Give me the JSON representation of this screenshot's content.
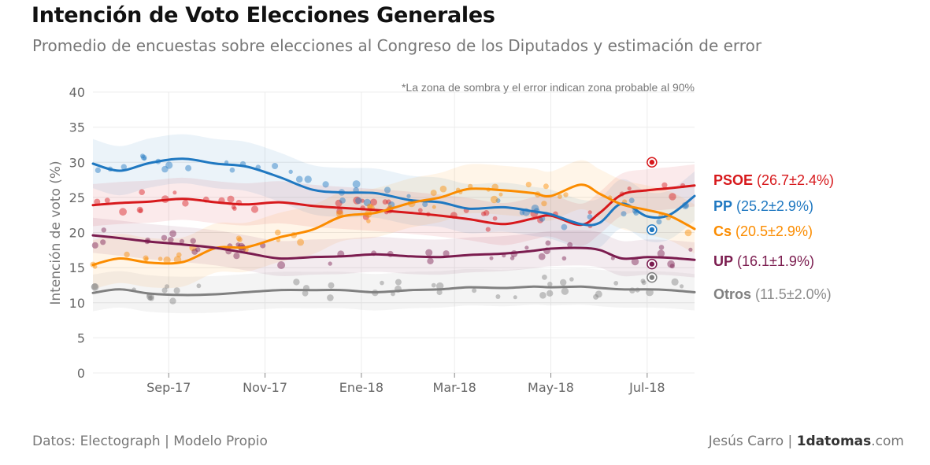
{
  "header": {
    "title": "Intención de Voto Elecciones Generales",
    "subtitle": "Promedio de encuestas sobre elecciones al Congreso de los Diputados y estimación de error"
  },
  "footer": {
    "source": "Datos: Electograph | Modelo Propio",
    "author": "Jesús Carro | ",
    "brand": "1datomas",
    "brand_suffix": ".com"
  },
  "chart_data": {
    "type": "line",
    "note": "*La zona de sombra y el error indican zona probable al 90%",
    "ylabel": "Intención de voto (%)",
    "ylim": [
      0,
      40
    ],
    "yticks": [
      0,
      5,
      10,
      15,
      20,
      25,
      30,
      35,
      40
    ],
    "xlim": [
      "2017-07-15",
      "2018-07-31"
    ],
    "xticks": [
      {
        "date": "2017-09-01",
        "label": "Sep-17"
      },
      {
        "date": "2017-11-01",
        "label": "Nov-17"
      },
      {
        "date": "2018-01-01",
        "label": "Ene-18"
      },
      {
        "date": "2018-03-01",
        "label": "Mar-18"
      },
      {
        "date": "2018-05-01",
        "label": "May-18"
      },
      {
        "date": "2018-07-01",
        "label": "Jul-18"
      }
    ],
    "grid": true,
    "legend_position": "right",
    "series": [
      {
        "name": "PSOE",
        "estimate": "26.7",
        "error": "2.4",
        "color": "#d7191c",
        "x": [
          "2017-07-15",
          "2017-08-01",
          "2017-08-20",
          "2017-09-10",
          "2017-10-01",
          "2017-10-20",
          "2017-11-10",
          "2017-12-01",
          "2017-12-20",
          "2018-01-10",
          "2018-02-01",
          "2018-02-20",
          "2018-03-10",
          "2018-04-01",
          "2018-04-20",
          "2018-05-01",
          "2018-05-20",
          "2018-06-01",
          "2018-06-15",
          "2018-07-01",
          "2018-07-15",
          "2018-07-31"
        ],
        "y": [
          23.9,
          24.2,
          24.4,
          24.8,
          24.3,
          24.0,
          24.3,
          23.8,
          23.5,
          23.2,
          22.8,
          22.4,
          21.9,
          21.2,
          22.0,
          22.4,
          21.1,
          22.8,
          25.4,
          26.0,
          26.3,
          26.7
        ]
      },
      {
        "name": "PP",
        "estimate": "25.2",
        "error": "2.9",
        "color": "#1f78c1",
        "x": [
          "2017-07-15",
          "2017-08-01",
          "2017-08-20",
          "2017-09-10",
          "2017-10-01",
          "2017-10-20",
          "2017-11-10",
          "2017-12-01",
          "2017-12-20",
          "2018-01-10",
          "2018-02-01",
          "2018-02-20",
          "2018-03-10",
          "2018-04-01",
          "2018-04-20",
          "2018-05-01",
          "2018-05-20",
          "2018-06-01",
          "2018-06-15",
          "2018-07-01",
          "2018-07-15",
          "2018-07-31"
        ],
        "y": [
          29.8,
          28.8,
          29.9,
          30.5,
          29.8,
          29.4,
          27.9,
          26.1,
          25.7,
          25.6,
          24.6,
          24.3,
          23.4,
          23.6,
          23.0,
          22.6,
          21.2,
          21.4,
          24.1,
          22.3,
          22.5,
          25.2
        ]
      },
      {
        "name": "Cs",
        "estimate": "20.5",
        "error": "2.9",
        "color": "#fb8c00",
        "x": [
          "2017-07-15",
          "2017-08-01",
          "2017-08-20",
          "2017-09-10",
          "2017-10-01",
          "2017-10-20",
          "2017-11-10",
          "2017-12-01",
          "2017-12-20",
          "2018-01-10",
          "2018-02-01",
          "2018-02-20",
          "2018-03-10",
          "2018-04-01",
          "2018-04-20",
          "2018-05-01",
          "2018-05-20",
          "2018-06-01",
          "2018-06-15",
          "2018-07-01",
          "2018-07-15",
          "2018-07-31"
        ],
        "y": [
          15.4,
          16.3,
          15.7,
          15.8,
          17.8,
          17.9,
          19.3,
          20.4,
          22.3,
          22.8,
          24.2,
          25.0,
          26.2,
          26.0,
          25.6,
          25.2,
          26.8,
          25.5,
          24.0,
          23.2,
          22.4,
          20.5
        ]
      },
      {
        "name": "UP",
        "estimate": "16.1",
        "error": "1.9",
        "color": "#7b1c4f",
        "x": [
          "2017-07-15",
          "2017-08-01",
          "2017-08-20",
          "2017-09-10",
          "2017-10-01",
          "2017-10-20",
          "2017-11-10",
          "2017-12-01",
          "2017-12-20",
          "2018-01-10",
          "2018-02-01",
          "2018-02-20",
          "2018-03-10",
          "2018-04-01",
          "2018-04-20",
          "2018-05-01",
          "2018-05-20",
          "2018-06-01",
          "2018-06-15",
          "2018-07-01",
          "2018-07-15",
          "2018-07-31"
        ],
        "y": [
          19.6,
          19.2,
          18.7,
          18.3,
          17.8,
          17.1,
          16.3,
          16.5,
          16.6,
          16.9,
          16.6,
          16.5,
          16.8,
          17.0,
          17.4,
          17.7,
          17.8,
          17.5,
          16.3,
          16.5,
          16.4,
          16.1
        ]
      },
      {
        "name": "Otros",
        "estimate": "11.5",
        "error": "2.0",
        "color": "#808080",
        "x": [
          "2017-07-15",
          "2017-08-01",
          "2017-08-20",
          "2017-09-10",
          "2017-10-01",
          "2017-10-20",
          "2017-11-10",
          "2017-12-01",
          "2017-12-20",
          "2018-01-10",
          "2018-02-01",
          "2018-02-20",
          "2018-03-10",
          "2018-04-01",
          "2018-04-20",
          "2018-05-01",
          "2018-05-20",
          "2018-06-01",
          "2018-06-15",
          "2018-07-01",
          "2018-07-15",
          "2018-07-31"
        ],
        "y": [
          11.4,
          11.9,
          11.3,
          11.1,
          11.2,
          11.5,
          11.8,
          11.8,
          11.8,
          11.5,
          11.8,
          11.9,
          12.2,
          12.1,
          12.3,
          12.2,
          12.3,
          12.1,
          11.9,
          11.9,
          11.8,
          11.5
        ]
      }
    ],
    "projection": {
      "date": "2018-07-04",
      "values": [
        {
          "name": "PSOE",
          "y": 30.0
        },
        {
          "name": "PP",
          "y": 20.4
        },
        {
          "name": "UP",
          "y": 15.5
        },
        {
          "name": "Otros",
          "y": 13.6
        }
      ]
    }
  }
}
